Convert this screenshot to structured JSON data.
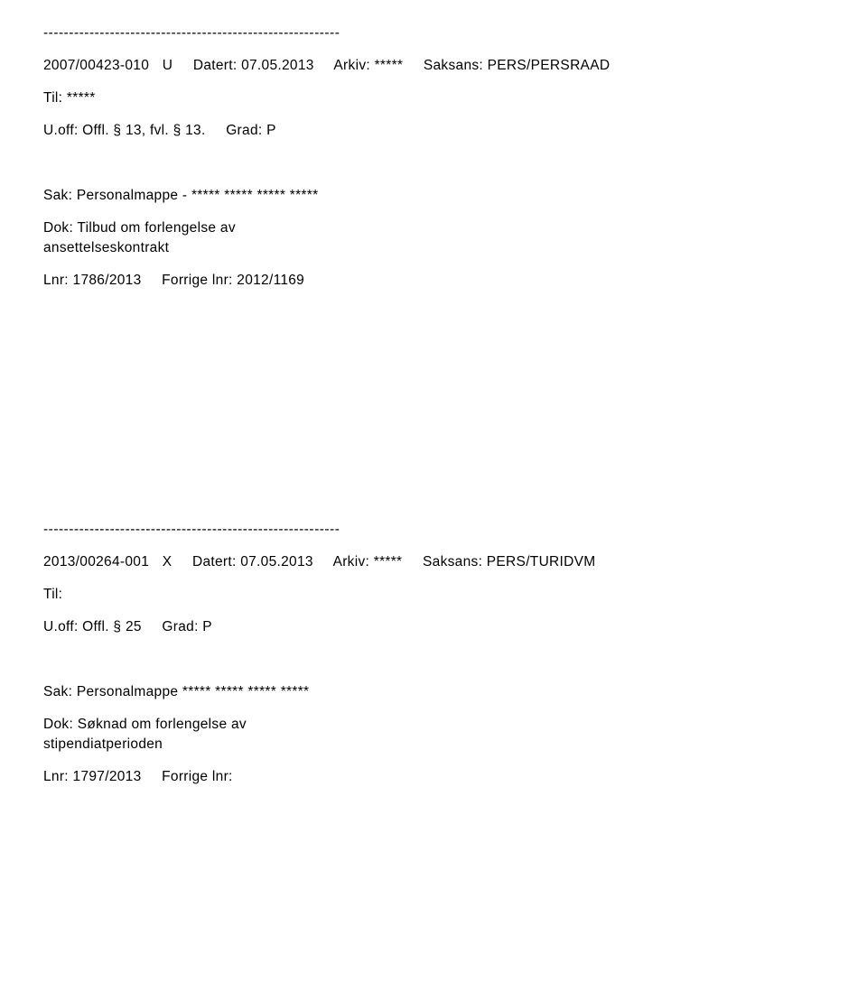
{
  "divider": "----------------------------------------------------------",
  "record1": {
    "caseNo": "2007/00423-010",
    "docType": "U",
    "datertLabel": "Datert:",
    "datert": "07.05.2013",
    "arkivLabel": "Arkiv:",
    "arkiv": "*****",
    "saksansLabel": "Saksans:",
    "saksans": "PERS/PERSRAAD",
    "tilLabel": "Til:",
    "til": "*****",
    "uoffLabel": "U.off:",
    "uoff": "Offl. § 13, fvl. § 13.",
    "gradLabel": "Grad:",
    "grad": "P",
    "sakLabel": "Sak:",
    "sak": "Personalmappe - ***** ***** ***** *****",
    "dokLabel": "Dok:",
    "dok": "Tilbud om forlengelse av",
    "dok2": "ansettelseskontrakt",
    "lnrLabel": "Lnr:",
    "lnr": "1786/2013",
    "forrigeLabel": "Forrige lnr:",
    "forrige": "2012/1169"
  },
  "record2": {
    "caseNo": "2013/00264-001",
    "docType": "X",
    "datertLabel": "Datert:",
    "datert": "07.05.2013",
    "arkivLabel": "Arkiv:",
    "arkiv": "*****",
    "saksansLabel": "Saksans:",
    "saksans": "PERS/TURIDVM",
    "tilLabel": "Til:",
    "uoffLabel": "U.off:",
    "uoff": "Offl. § 25",
    "gradLabel": "Grad:",
    "grad": "P",
    "sakLabel": "Sak:",
    "sak": "Personalmappe ***** ***** ***** *****",
    "dokLabel": "Dok:",
    "dok": "Søknad om forlengelse av",
    "dok2": "stipendiatperioden",
    "lnrLabel": "Lnr:",
    "lnr": "1797/2013",
    "forrigeLabel": "Forrige lnr:"
  }
}
